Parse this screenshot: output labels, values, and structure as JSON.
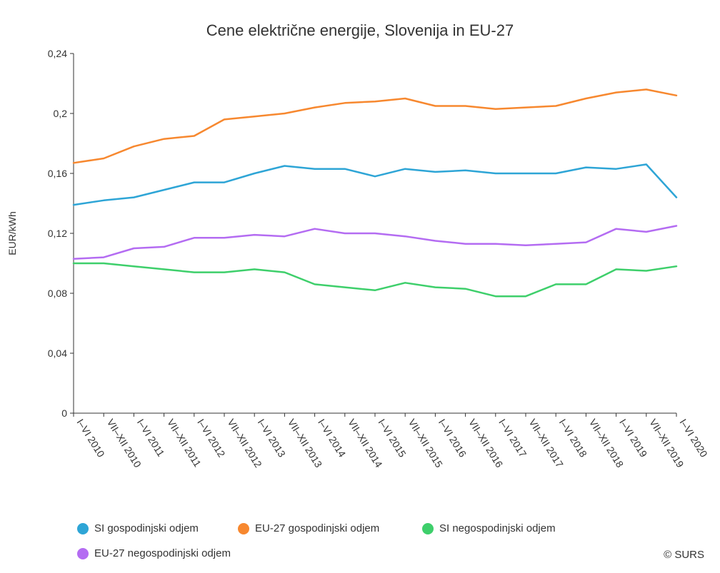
{
  "chart_data": {
    "type": "line",
    "title": "Cene električne energije, Slovenija in EU-27",
    "xlabel": "",
    "ylabel": "EUR/kWh",
    "ylim": [
      0,
      0.24
    ],
    "yticks": [
      "0",
      "0,04",
      "0,08",
      "0,12",
      "0,16",
      "0,2",
      "0,24"
    ],
    "grid": false,
    "legend_position": "bottom",
    "categories": [
      "I–VI 2010",
      "VII–XII 2010",
      "I–VI 2011",
      "VII–XII 2011",
      "I–VI 2012",
      "VII–XII 2012",
      "I–VI 2013",
      "VII–XII 2013",
      "I–VI 2014",
      "VII–XII 2014",
      "I–VI 2015",
      "VII–XII 2015",
      "I–VI 2016",
      "VII–XII 2016",
      "I–VI 2017",
      "VII–XII 2017",
      "I–VI 2018",
      "VII–XII 2018",
      "I–VI 2019",
      "VII–XII 2019",
      "I–VI 2020"
    ],
    "series": [
      {
        "name": "SI gospodinjski odjem",
        "color": "#2ea5d6",
        "values": [
          0.139,
          0.142,
          0.144,
          0.149,
          0.154,
          0.154,
          0.16,
          0.165,
          0.163,
          0.163,
          0.158,
          0.163,
          0.161,
          0.162,
          0.16,
          0.16,
          0.16,
          0.164,
          0.163,
          0.166,
          0.144
        ]
      },
      {
        "name": "EU-27 gospodinjski odjem",
        "color": "#f7882f",
        "values": [
          0.167,
          0.17,
          0.178,
          0.183,
          0.185,
          0.196,
          0.198,
          0.2,
          0.204,
          0.207,
          0.208,
          0.21,
          0.205,
          0.205,
          0.203,
          0.204,
          0.205,
          0.21,
          0.214,
          0.216,
          0.212
        ]
      },
      {
        "name": "SI negospodinjski odjem",
        "color": "#3ecf6b",
        "values": [
          0.1,
          0.1,
          0.098,
          0.096,
          0.094,
          0.094,
          0.096,
          0.094,
          0.086,
          0.084,
          0.082,
          0.087,
          0.084,
          0.083,
          0.078,
          0.078,
          0.086,
          0.086,
          0.096,
          0.095,
          0.098
        ]
      },
      {
        "name": "EU-27 negospodinjski odjem",
        "color": "#b46cf2",
        "values": [
          0.103,
          0.104,
          0.11,
          0.111,
          0.117,
          0.117,
          0.119,
          0.118,
          0.123,
          0.12,
          0.12,
          0.118,
          0.115,
          0.113,
          0.113,
          0.112,
          0.113,
          0.114,
          0.123,
          0.121,
          0.125
        ]
      }
    ]
  },
  "credit": "© SURS"
}
